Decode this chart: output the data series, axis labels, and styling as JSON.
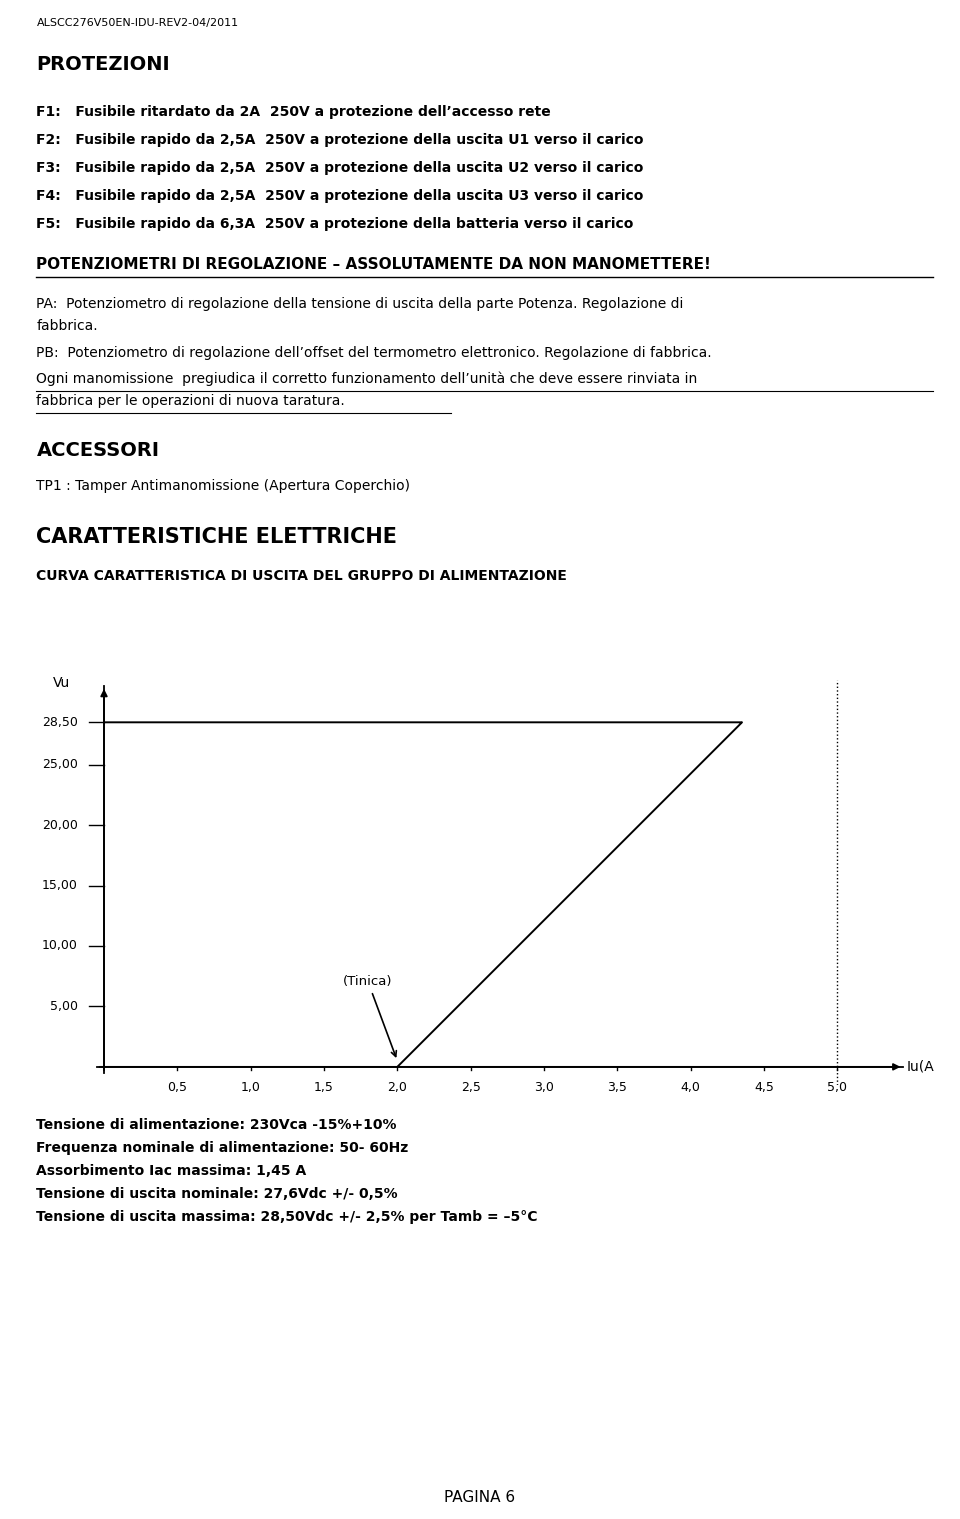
{
  "header": "ALSCC276V50EN-IDU-REV2-04/2011",
  "section1_title": "PROTEZIONI",
  "f_lines": [
    "F1:   Fusibile ritardato da 2A  250V a protezione dell’accesso rete",
    "F2:   Fusibile rapido da 2,5A  250V a protezione della uscita U1 verso il carico",
    "F3:   Fusibile rapido da 2,5A  250V a protezione della uscita U2 verso il carico",
    "F4:   Fusibile rapido da 2,5A  250V a protezione della uscita U3 verso il carico",
    "F5:   Fusibile rapido da 6,3A  250V a protezione della batteria verso il carico"
  ],
  "section2_title": "POTENZIOMETRI DI REGOLAZIONE – ASSOLUTAMENTE DA NON MANOMETTERE!",
  "pa_lines": [
    "PA:  Potenziometro di regolazione della tensione di uscita della parte Potenza. Regolazione di",
    "fabbrica."
  ],
  "pb_text": "PB:  Potenziometro di regolazione dell’offset del termometro elettronico. Regolazione di fabbrica.",
  "ogni_lines": [
    "Ogni manomissione  pregiudica il corretto funzionamento dell’unità che deve essere rinviata in",
    "fabbrica per le operazioni di nuova taratura."
  ],
  "section3_title": "ACCESSORI",
  "tp1_text": "TP1 : Tamper Antimanomissione (Apertura Coperchio)",
  "section4_title": "CARATTERISTICHE ELETTRICHE",
  "curve_title": "CURVA CARATTERISTICA DI USCITA DEL GRUPPO DI ALIMENTAZIONE",
  "vu_label": "Vu",
  "iu_label": "Iu(A",
  "y_ticks": [
    5.0,
    10.0,
    15.0,
    20.0,
    25.0,
    28.5
  ],
  "y_tick_labels": [
    "5,00",
    "10,00",
    "15,00",
    "20,00",
    "25,00",
    "28,50"
  ],
  "x_ticks": [
    0.5,
    1.0,
    1.5,
    2.0,
    2.5,
    3.0,
    3.5,
    4.0,
    4.5,
    5.0
  ],
  "x_tick_labels": [
    "0,5",
    "1,0",
    "1,5",
    "2,0",
    "2,5",
    "3,0",
    "3,5",
    "4,0",
    "4,5",
    "5,0"
  ],
  "tinica_label": "(Tinica)",
  "footer_lines": [
    "Tensione di alimentazione: 230Vca -15%+10%",
    "Frequenza nominale di alimentazione: 50- 60Hz",
    "Assorbimento Iac massima: 1,45 A",
    "Tensione di uscita nominale: 27,6Vdc +/- 0,5%",
    "Tensione di uscita massima: 28,50Vdc +/- 2,5% per Tamb = –5°C"
  ],
  "page_label": "PAGINA 6"
}
